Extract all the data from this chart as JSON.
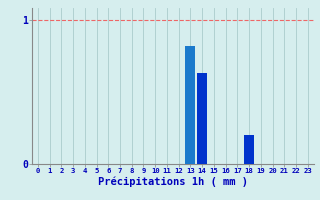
{
  "hours": [
    0,
    1,
    2,
    3,
    4,
    5,
    6,
    7,
    8,
    9,
    10,
    11,
    12,
    13,
    14,
    15,
    16,
    17,
    18,
    19,
    20,
    21,
    22,
    23
  ],
  "values": [
    0,
    0,
    0,
    0,
    0,
    0,
    0,
    0,
    0,
    0,
    0,
    0,
    0,
    0.82,
    0.63,
    0,
    0,
    0,
    0.2,
    0,
    0,
    0,
    0,
    0
  ],
  "bar_color": "#0033cc",
  "bar_color_alt": "#1a7acc",
  "background_color": "#d6eeee",
  "grid_color_v": "#aacccc",
  "grid_color_h": "#ee6666",
  "xlabel": "Précipitations 1h ( mm )",
  "xlabel_color": "#0000bb",
  "ylim_max": 1.08,
  "xlabel_fontsize": 7.5,
  "xtick_fontsize": 5.2,
  "ytick_fontsize": 7
}
